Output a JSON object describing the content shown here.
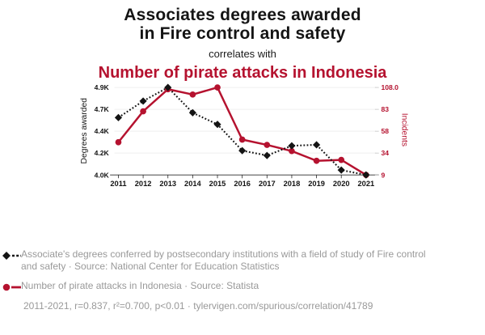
{
  "title": {
    "line1": "Associates degrees awarded",
    "line2": "in Fire control and safety",
    "connector": "correlates with",
    "red_line": "Number of pirate attacks in Indonesia"
  },
  "colors": {
    "accent_red": "#b5122f",
    "series_black": "#141414",
    "legend_gray": "#999999",
    "gridline": "#efefef",
    "axis_line": "#2b2b2b"
  },
  "chart_data": {
    "type": "line",
    "x": [
      2011,
      2012,
      2013,
      2014,
      2015,
      2016,
      2017,
      2018,
      2019,
      2020,
      2021
    ],
    "series": [
      {
        "name": "Associates degrees awarded in Fire control and safety",
        "axis": "left",
        "style": "dotted-diamond",
        "color": "#141414",
        "values": [
          4590,
          4760,
          4900,
          4640,
          4520,
          4250,
          4200,
          4300,
          4310,
          4050,
          4000
        ]
      },
      {
        "name": "Number of pirate attacks in Indonesia",
        "axis": "right",
        "style": "solid-circle",
        "color": "#b5122f",
        "values": [
          46,
          81,
          106,
          100,
          108,
          49,
          43,
          36,
          25,
          26,
          9
        ]
      }
    ],
    "left_axis": {
      "label": "Degrees awarded",
      "range": [
        4000,
        4900
      ],
      "ticks": [
        4900,
        4675,
        4450,
        4225,
        4000
      ],
      "tick_labels": [
        "4.9K",
        "4.7K",
        "4.4K",
        "4.2K",
        "4.0K"
      ]
    },
    "right_axis": {
      "label": "Incidents",
      "range": [
        9,
        108
      ],
      "ticks": [
        108,
        83.25,
        58.5,
        33.75,
        9
      ],
      "tick_labels": [
        "108.0",
        "83",
        "58",
        "34",
        "9"
      ]
    },
    "grid": true,
    "legend_position": "bottom"
  },
  "legend": {
    "items": [
      {
        "marker": "black-diamond-dotted",
        "label": "Associate's degrees conferred by postsecondary institutions with a field of study of Fire control and safety · Source: National Center for Education Statistics"
      },
      {
        "marker": "red-circle-solid",
        "label": "Number of pirate attacks in Indonesia · Source: Statista"
      }
    ],
    "footer": "2011-2021, r=0.837, r²=0.700, p<0.01 · tylervigen.com/spurious/correlation/41789"
  }
}
